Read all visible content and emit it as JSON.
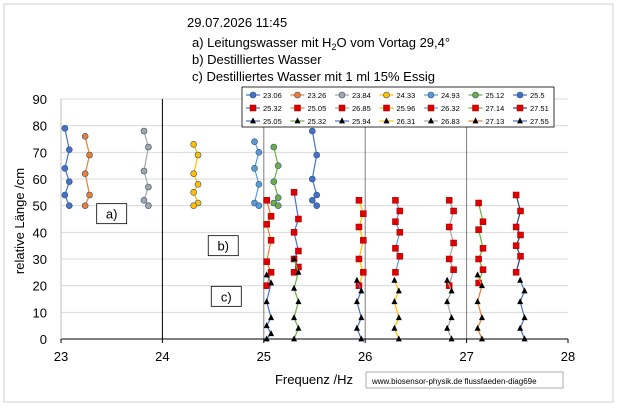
{
  "chart_data": {
    "type": "scatter",
    "title_lines": [
      "29.07.2026 11:45",
      "a) Leitungswasser mit H",
      "b) Destilliertes Wasser",
      "c) Destilliertes Wasser mit 1 ml 15% Essig"
    ],
    "title_h2o_sub": "2",
    "title_h2o_o": "O",
    "title_h2o_tail": " vom Vortag 29,4°",
    "xlabel": "Frequenz /Hz",
    "ylabel": "relative Länge /cm",
    "xlim": [
      23,
      28
    ],
    "ylim": [
      0,
      90
    ],
    "x_ticks": [
      23,
      24,
      25,
      26,
      27,
      28
    ],
    "y_ticks": [
      0,
      10,
      20,
      30,
      40,
      50,
      60,
      70,
      80,
      90
    ],
    "x_tick_labels": [
      "23",
      "24",
      "25",
      "26",
      "27",
      "28"
    ],
    "y_tick_labels": [
      "0",
      "10",
      "20",
      "30",
      "40",
      "50",
      "60",
      "70",
      "80",
      "90"
    ],
    "vertical_lines": [
      24,
      25,
      26,
      27
    ],
    "annotations": [
      {
        "text": "a)",
        "x": 23.5,
        "y": 47
      },
      {
        "text": "b)",
        "x": 24.6,
        "y": 35
      },
      {
        "text": "c)",
        "x": 24.63,
        "y": 16
      }
    ],
    "watermark": "www.biosensor-physik.de  flussfaeden-diag69e",
    "legend_position": "top-right",
    "series": [
      {
        "name": "23.06",
        "group": "a",
        "freq": 23.06,
        "color": "#4472c4",
        "marker": "circle",
        "y": [
          79,
          71,
          64,
          59,
          54,
          50
        ]
      },
      {
        "name": "23.26",
        "group": "a",
        "freq": 23.26,
        "color": "#ed7d31",
        "marker": "circle",
        "y": [
          76,
          69,
          62,
          54,
          50
        ]
      },
      {
        "name": "23.84",
        "group": "a",
        "freq": 23.84,
        "color": "#a5a5a5",
        "marker": "circle",
        "y": [
          78,
          72,
          63,
          57,
          52,
          50
        ]
      },
      {
        "name": "24.33",
        "group": "a",
        "freq": 24.33,
        "color": "#ffc000",
        "marker": "circle",
        "y": [
          73,
          69,
          62,
          58,
          55,
          51,
          50
        ]
      },
      {
        "name": "24.93",
        "group": "a",
        "freq": 24.93,
        "color": "#5b9bd5",
        "marker": "circle",
        "y": [
          74,
          70,
          64,
          58,
          51,
          50
        ]
      },
      {
        "name": "25.12",
        "group": "a",
        "freq": 25.12,
        "color": "#70ad47",
        "marker": "circle",
        "y": [
          72,
          65,
          59,
          53,
          51,
          50
        ]
      },
      {
        "name": "25.5",
        "group": "a",
        "freq": 25.5,
        "color": "#4472c4",
        "marker": "circle",
        "y": [
          78,
          69,
          60,
          54,
          52,
          50
        ]
      },
      {
        "name": "25.32",
        "group": "b",
        "freq": 25.32,
        "color": "#4472c4",
        "marker": "square",
        "y": [
          55,
          45,
          40,
          33,
          30,
          27,
          25
        ]
      },
      {
        "name": "25.05",
        "group": "b",
        "freq": 25.05,
        "color": "#ed7d31",
        "marker": "square",
        "y": [
          52,
          46,
          43,
          37,
          29,
          25,
          20
        ]
      },
      {
        "name": "26.85",
        "group": "b",
        "freq": 26.85,
        "color": "#a5a5a5",
        "marker": "square",
        "y": [
          52,
          48,
          42,
          36,
          30,
          26,
          20
        ]
      },
      {
        "name": "25.96",
        "group": "b",
        "freq": 25.96,
        "color": "#ffc000",
        "marker": "square",
        "y": [
          52,
          47,
          42,
          37,
          30,
          25,
          20
        ]
      },
      {
        "name": "26.32",
        "group": "b",
        "freq": 26.32,
        "color": "#5b9bd5",
        "marker": "square",
        "y": [
          52,
          48,
          44,
          40,
          34,
          31,
          25
        ]
      },
      {
        "name": "27.14",
        "group": "b",
        "freq": 27.14,
        "color": "#70ad47",
        "marker": "square",
        "y": [
          51,
          44,
          41,
          34,
          30,
          26,
          21
        ]
      },
      {
        "name": "27.51",
        "group": "b",
        "freq": 27.51,
        "color": "#264478",
        "marker": "square",
        "y": [
          54,
          48,
          42,
          39,
          35,
          31,
          25
        ]
      },
      {
        "name": "25.05",
        "group": "c",
        "freq": 25.05,
        "color": "#4472c4",
        "marker": "triangle",
        "y": [
          24,
          21,
          14,
          8,
          5,
          2,
          0
        ]
      },
      {
        "name": "25.32",
        "group": "c",
        "freq": 25.32,
        "color": "#70ad47",
        "marker": "triangle",
        "y": [
          30,
          25,
          19,
          14,
          8,
          4,
          0
        ]
      },
      {
        "name": "25.94",
        "group": "c",
        "freq": 25.94,
        "color": "#4472c4",
        "marker": "triangle",
        "y": [
          22,
          18,
          14,
          8,
          4,
          0
        ]
      },
      {
        "name": "26.31",
        "group": "c",
        "freq": 26.31,
        "color": "#ffc000",
        "marker": "triangle",
        "y": [
          22,
          18,
          14,
          8,
          4,
          0
        ]
      },
      {
        "name": "26.83",
        "group": "c",
        "freq": 26.83,
        "color": "#a5a5a5",
        "marker": "triangle",
        "y": [
          22,
          18,
          14,
          8,
          4,
          0
        ]
      },
      {
        "name": "27.13",
        "group": "c",
        "freq": 27.13,
        "color": "#ed7d31",
        "marker": "triangle",
        "y": [
          24,
          20,
          14,
          8,
          4,
          0
        ]
      },
      {
        "name": "27.55",
        "group": "c",
        "freq": 27.55,
        "color": "#4472c4",
        "marker": "triangle",
        "y": [
          22,
          18,
          14,
          8,
          4,
          0
        ]
      }
    ]
  }
}
